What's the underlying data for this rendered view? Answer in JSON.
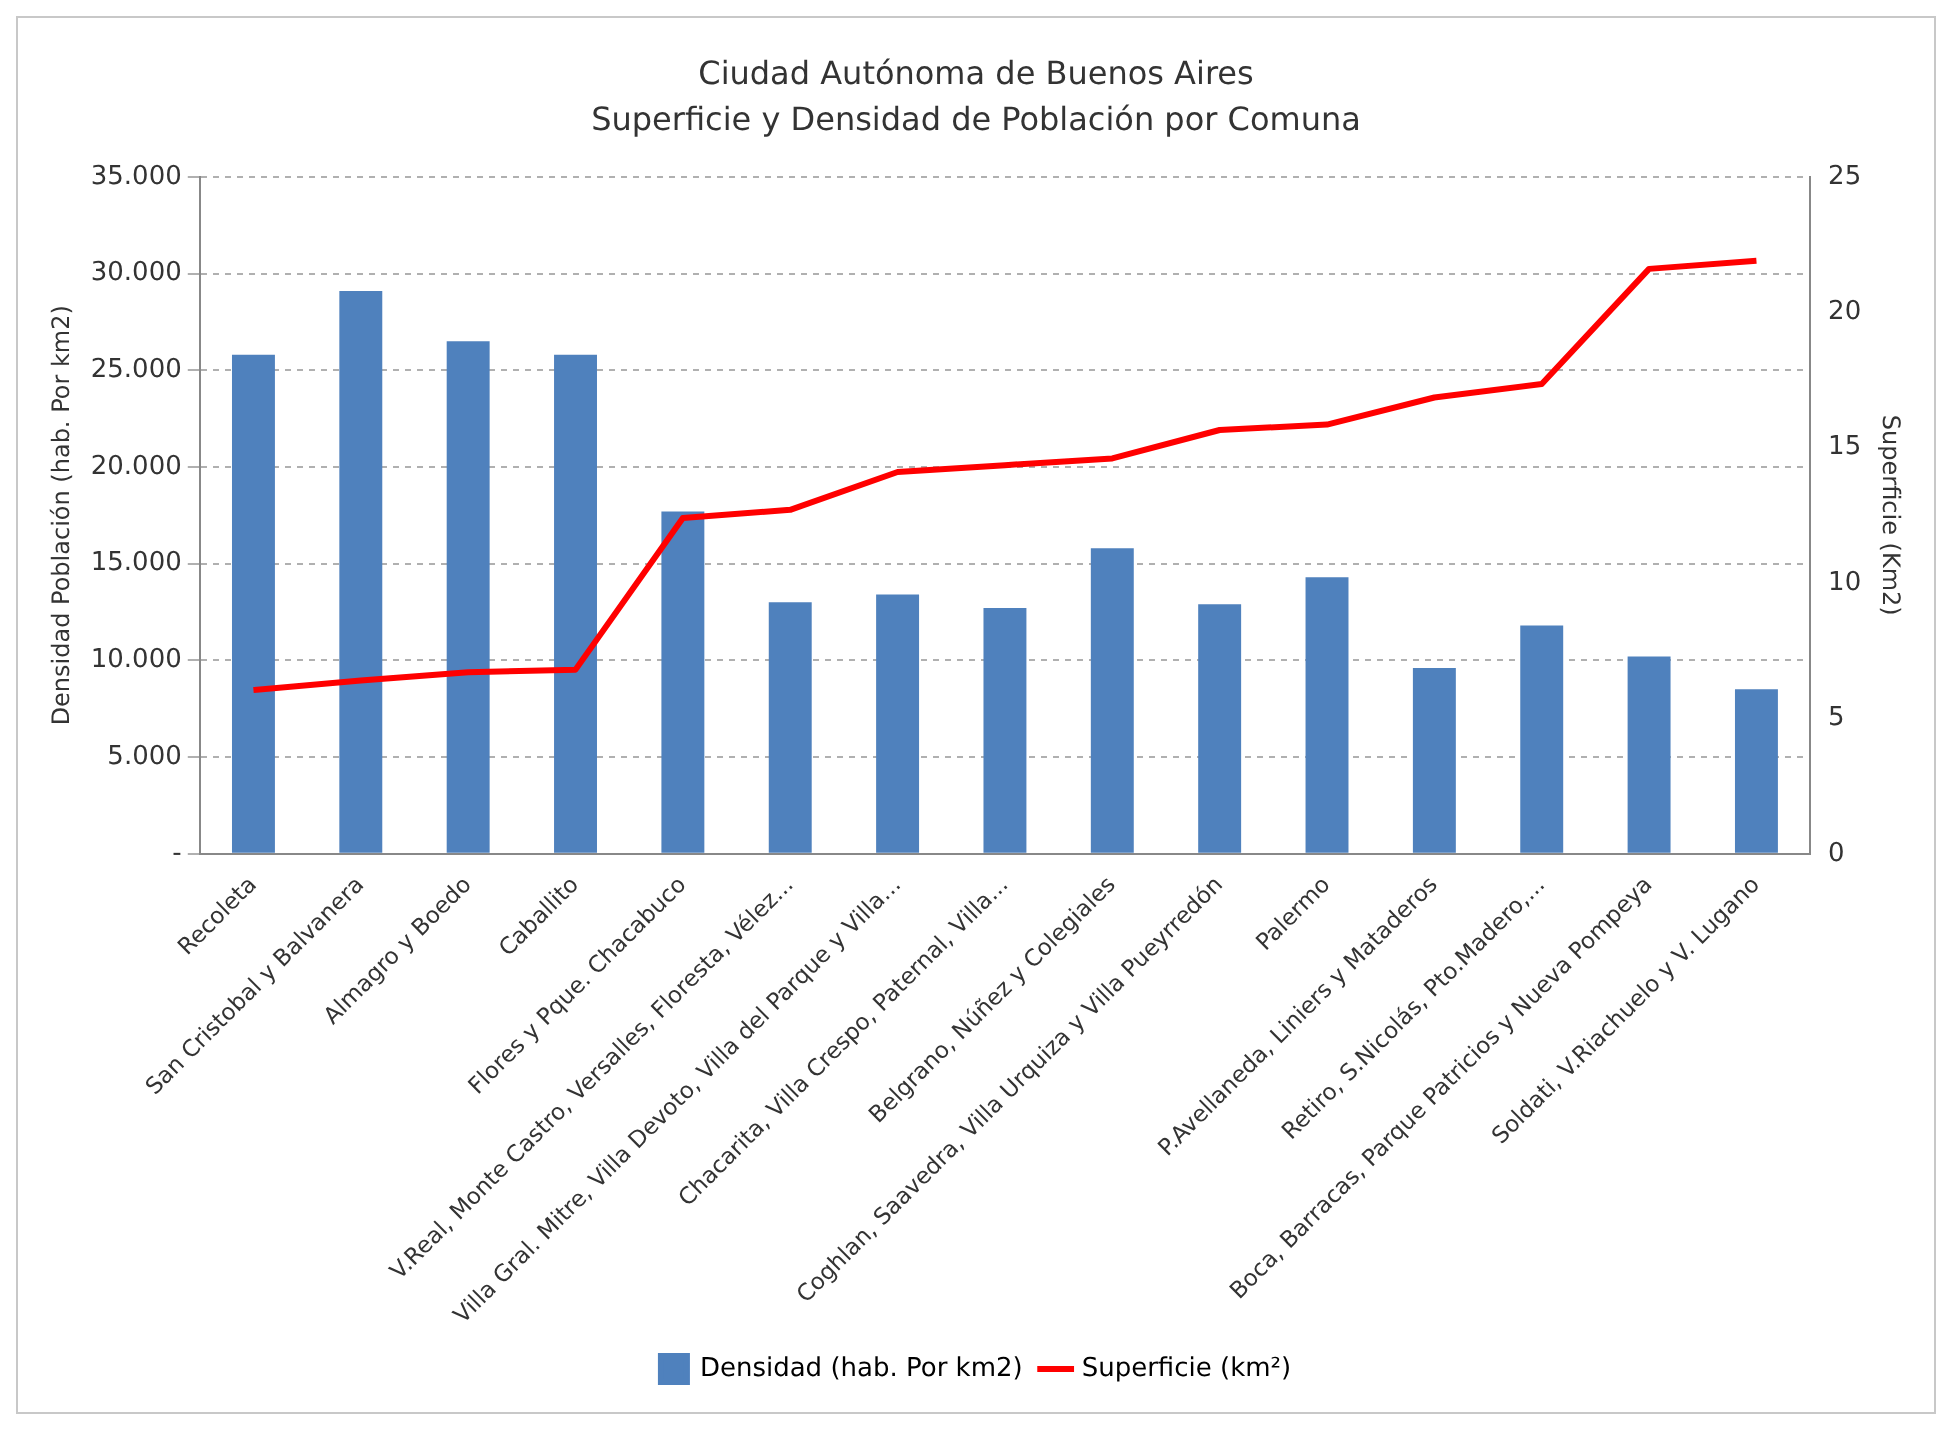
{
  "chart_data": {
    "type": "bar",
    "title": "Ciudad Autónoma de Buenos Aires",
    "subtitle": "Superficie y Densidad de Población por Comuna",
    "ylabel": "Densidad Población (hab. Por km2)",
    "y2label": "Superficie (Km2)",
    "categories": [
      "Recoleta",
      "San Cristobal y Balvanera",
      "Almagro y Boedo",
      "Caballito",
      "Flores y Pque. Chacabuco",
      "V.Real, Monte Castro, Versalles, Floresta, Vélez...",
      "Villa Gral. Mitre, Villa Devoto, Villa del Parque y Villa...",
      "Chacarita, Villa Crespo, Paternal, Villa...",
      "Belgrano, Núñez y Colegiales",
      "Coghlan, Saavedra, Villa Urquiza y Villa Pueyrredón",
      "Palermo",
      "P.Avellaneda, Liniers y Mataderos",
      "Retiro, S.Nicolás, Pto.Madero,...",
      "Boca, Barracas, Parque Patricios y Nueva Pompeya",
      "Soldati, V.Riachuelo y V. Lugano"
    ],
    "series": [
      {
        "name": "Densidad (hab. Por km2)",
        "color": "#4f81bd",
        "values": [
          25800,
          29100,
          26500,
          25800,
          17700,
          13000,
          13400,
          12700,
          15800,
          12900,
          14300,
          9600,
          11800,
          10200,
          8500
        ]
      },
      {
        "name": "Superficie (km²)",
        "type": "line",
        "axis": "y2",
        "color": "#ff0000",
        "values": [
          6.05,
          6.4,
          6.7,
          6.8,
          12.4,
          12.7,
          14.1,
          14.35,
          14.6,
          15.65,
          15.85,
          16.85,
          17.35,
          21.6,
          21.9
        ]
      }
    ],
    "ylim": [
      0,
      35000
    ],
    "yticks": [
      {
        "value": 0,
        "label": "-"
      },
      {
        "value": 5000,
        "label": "5.000"
      },
      {
        "value": 10000,
        "label": "10.000"
      },
      {
        "value": 15000,
        "label": "15.000"
      },
      {
        "value": 20000,
        "label": "20.000"
      },
      {
        "value": 25000,
        "label": "25.000"
      },
      {
        "value": 30000,
        "label": "30.000"
      },
      {
        "value": 35000,
        "label": "35.000"
      }
    ],
    "y2lim": [
      0,
      25
    ],
    "y2ticks": [
      0,
      5,
      10,
      15,
      20,
      25
    ],
    "grid": "y",
    "legend": "bottom",
    "marker": "none",
    "line_style": "solid"
  }
}
